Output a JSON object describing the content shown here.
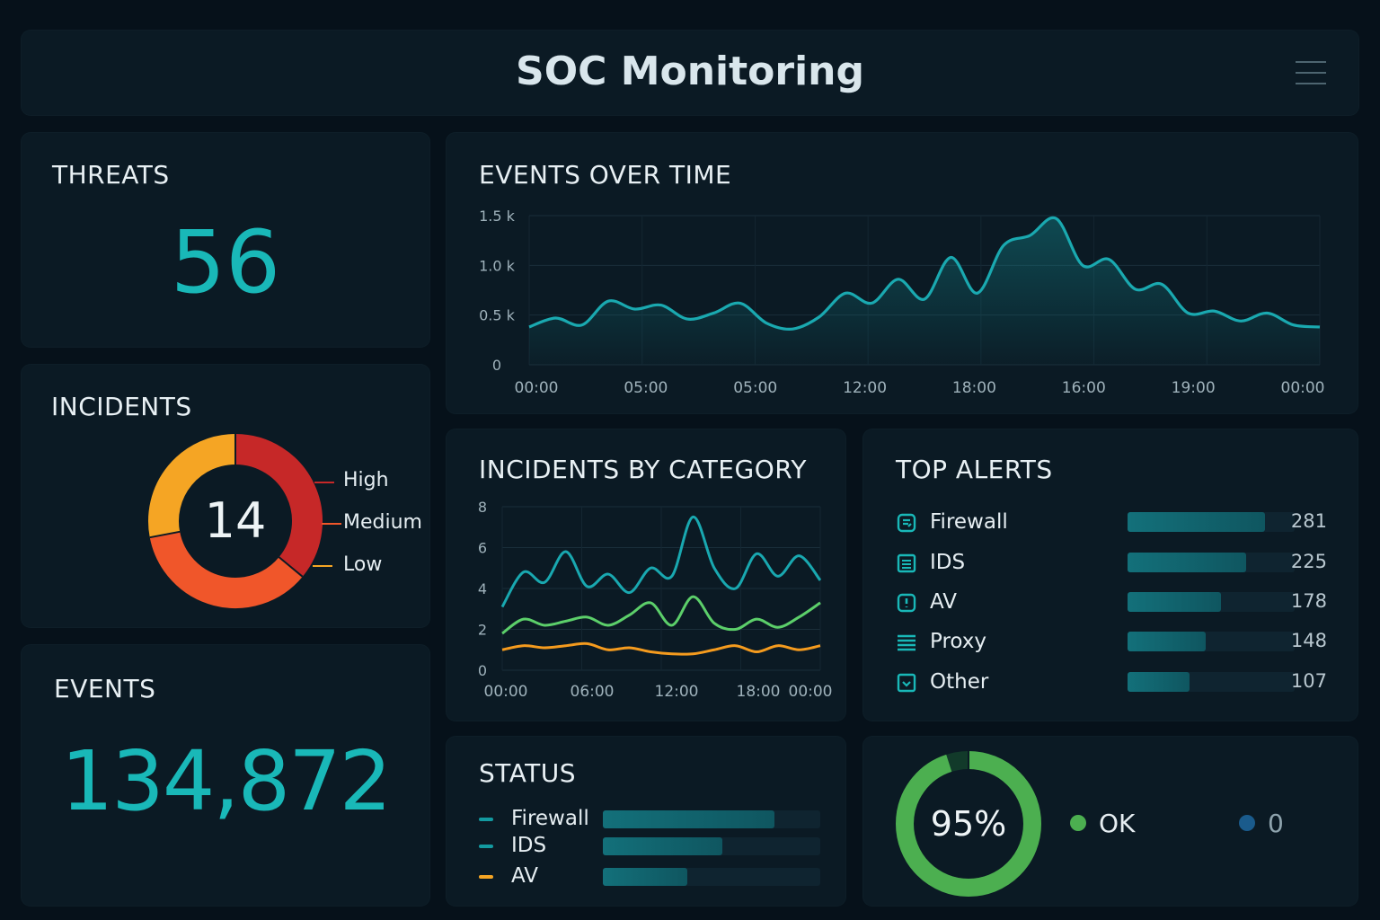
{
  "header": {
    "title": "SOC Monitoring",
    "menu_icon": "hamburger-menu-icon"
  },
  "threats": {
    "title": "THREATS",
    "value": "56",
    "color": "#19b8b8"
  },
  "incidents": {
    "title": "INCIDENTS",
    "total": "14",
    "legend": [
      {
        "label": "High",
        "color": "#c62828"
      },
      {
        "label": "Medium",
        "color": "#f0562a"
      },
      {
        "label": "Low",
        "color": "#f5a524"
      }
    ],
    "chart_data": {
      "type": "pie",
      "categories": [
        "High",
        "Medium",
        "Low"
      ],
      "values": [
        0.36,
        0.36,
        0.28
      ],
      "center_label": "14"
    }
  },
  "events": {
    "title": "EVENTS",
    "value": "134,872"
  },
  "events_over_time": {
    "title": "EVENTS OVER TIME",
    "y_ticks": [
      "1.5 k",
      "1.0 k",
      "0.5 k",
      "0"
    ],
    "x_ticks": [
      "00:00",
      "05:00",
      "05:00",
      "12:00",
      "18:00",
      "16:00",
      "19:00",
      "00:00"
    ]
  },
  "incidents_by_category": {
    "title": "INCIDENTS BY CATEGORY",
    "y_ticks": [
      "8",
      "6",
      "4",
      "2",
      "0"
    ],
    "x_ticks": [
      "00:00",
      "06:00",
      "12:00",
      "18:00",
      "00:00"
    ]
  },
  "top_alerts": {
    "title": "TOP ALERTS",
    "items": [
      {
        "label": "Firewall",
        "count": "281",
        "icon": "firewall-icon",
        "fraction": 0.82
      },
      {
        "label": "IDS",
        "count": "225",
        "icon": "ids-list-icon",
        "fraction": 0.71
      },
      {
        "label": "AV",
        "count": "178",
        "icon": "antivirus-icon",
        "fraction": 0.56
      },
      {
        "label": "Proxy",
        "count": "148",
        "icon": "proxy-lines-icon",
        "fraction": 0.47
      },
      {
        "label": "Other",
        "count": "107",
        "icon": "other-inbox-icon",
        "fraction": 0.37
      }
    ]
  },
  "status": {
    "title": "STATUS",
    "items": [
      {
        "label": "Firewall",
        "color": "#139aa0",
        "fraction": 0.79
      },
      {
        "label": "IDS",
        "color": "#139aa0",
        "fraction": 0.55
      },
      {
        "label": "AV",
        "color": "#f5a524",
        "fraction": 0.39
      }
    ]
  },
  "health": {
    "percent": "95%",
    "ok_label": "OK",
    "zero_label": "0",
    "ok_color": "#4caf50",
    "zero_color": "#1a5b8c",
    "fraction": 0.95
  },
  "chart_data": [
    {
      "type": "area",
      "title": "EVENTS OVER TIME",
      "x_ticks": [
        "00:00",
        "05:00",
        "05:00",
        "12:00",
        "18:00",
        "16:00",
        "19:00",
        "00:00"
      ],
      "ylim": [
        0,
        1500
      ],
      "y_ticks": [
        0,
        500,
        1000,
        1500
      ],
      "series": [
        {
          "values": [
            380,
            470,
            400,
            640,
            560,
            600,
            460,
            520,
            620,
            420,
            360,
            480,
            720,
            620,
            860,
            660,
            1080,
            720,
            1200,
            1300,
            1470,
            1000,
            1060,
            760,
            810,
            520,
            540,
            440,
            520,
            400,
            380
          ]
        }
      ]
    },
    {
      "type": "line",
      "title": "INCIDENTS BY CATEGORY",
      "x_ticks": [
        "00:00",
        "06:00",
        "12:00",
        "18:00",
        "00:00"
      ],
      "ylim": [
        0,
        8
      ],
      "y_ticks": [
        0,
        2,
        4,
        6,
        8
      ],
      "series": [
        {
          "color": "#19a8b0",
          "values": [
            3.1,
            4.8,
            4.3,
            5.8,
            4.1,
            4.7,
            3.8,
            5.0,
            4.6,
            7.5,
            5.0,
            4.0,
            5.7,
            4.6,
            5.6,
            4.4
          ]
        },
        {
          "color": "#5ccf6a",
          "values": [
            1.8,
            2.5,
            2.2,
            2.4,
            2.6,
            2.2,
            2.7,
            3.3,
            2.2,
            3.6,
            2.3,
            2.0,
            2.5,
            2.1,
            2.6,
            3.3
          ]
        },
        {
          "color": "#f59b1e",
          "values": [
            1.0,
            1.2,
            1.1,
            1.2,
            1.3,
            1.0,
            1.1,
            0.9,
            0.8,
            0.8,
            1.0,
            1.2,
            0.9,
            1.2,
            1.0,
            1.2
          ]
        }
      ]
    }
  ]
}
